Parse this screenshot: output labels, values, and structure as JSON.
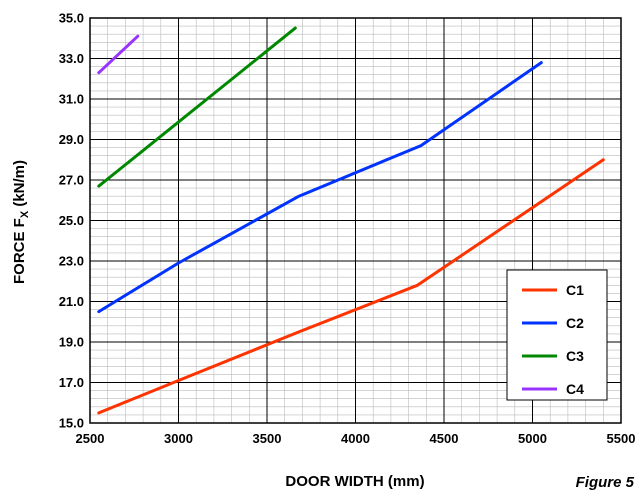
{
  "chart_data": {
    "type": "line",
    "title": "",
    "xlabel": "DOOR WIDTH (mm)",
    "ylabel": "FORCE F",
    "ylabel_subscript": "X",
    "ylabel_unit": " (kN/m)",
    "caption": "Figure 5",
    "xlim": [
      2500,
      5500
    ],
    "ylim": [
      15.0,
      35.0
    ],
    "x_ticks": [
      "2500",
      "3000",
      "3500",
      "4000",
      "4500",
      "5000",
      "5500"
    ],
    "x_tick_values": [
      2500,
      3000,
      3500,
      4000,
      4500,
      5000,
      5500
    ],
    "y_ticks": [
      "15.0",
      "17.0",
      "19.0",
      "21.0",
      "23.0",
      "25.0",
      "27.0",
      "29.0",
      "31.0",
      "33.0",
      "35.0"
    ],
    "y_tick_values": [
      15,
      17,
      19,
      21,
      23,
      25,
      27,
      29,
      31,
      33,
      35
    ],
    "grid": true,
    "legend_position": "bottom-right",
    "series": [
      {
        "name": "C1",
        "color": "#ff3300",
        "x": [
          2550,
          3000,
          3680,
          4350,
          5400
        ],
        "y": [
          15.5,
          17.1,
          19.5,
          21.8,
          28.0
        ]
      },
      {
        "name": "C2",
        "color": "#0033ff",
        "x": [
          2550,
          3000,
          3680,
          4370,
          5050
        ],
        "y": [
          20.5,
          22.9,
          26.2,
          28.7,
          32.8
        ]
      },
      {
        "name": "C3",
        "color": "#008800",
        "x": [
          2550,
          3660
        ],
        "y": [
          26.7,
          34.5
        ]
      },
      {
        "name": "C4",
        "color": "#9933ff",
        "x": [
          2550,
          2770
        ],
        "y": [
          32.3,
          34.1
        ]
      }
    ]
  }
}
